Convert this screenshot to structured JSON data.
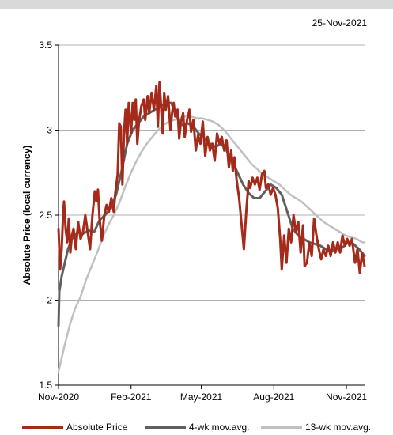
{
  "date_stamp": "25-Nov-2021",
  "colors": {
    "absolute_price": "#a52a1a",
    "ma4": "#606060",
    "ma13": "#c0c0c0",
    "top_band": "#d9d9d9",
    "grid": "#b0b0b0"
  },
  "chart_data": {
    "type": "line",
    "title": "",
    "xlabel": "",
    "ylabel": "Absolute Price (local currency)",
    "ylim": [
      1.5,
      3.5
    ],
    "yticks": [
      1.5,
      2,
      2.5,
      3,
      3.5
    ],
    "ytick_labels": [
      "1.5",
      "2",
      "2.5",
      "3",
      "3.5"
    ],
    "xlim": [
      "2020-11-01",
      "2021-11-25"
    ],
    "xticks": [
      "2020-11-01",
      "2021-02-01",
      "2021-05-01",
      "2021-08-01",
      "2021-11-01"
    ],
    "xtick_labels": [
      "Nov-2020",
      "Feb-2021",
      "May-2021",
      "Aug-2021",
      "Nov-2021"
    ],
    "grid": "horizontal",
    "legend_position": "bottom",
    "series": [
      {
        "name": "Absolute Price",
        "color": "#a52a1a",
        "points": [
          [
            "2020-11-01",
            2.42
          ],
          [
            "2020-11-03",
            2.18
          ],
          [
            "2020-11-05",
            2.3
          ],
          [
            "2020-11-07",
            2.52
          ],
          [
            "2020-11-08",
            2.58
          ],
          [
            "2020-11-10",
            2.42
          ],
          [
            "2020-11-12",
            2.34
          ],
          [
            "2020-11-14",
            2.48
          ],
          [
            "2020-11-16",
            2.28
          ],
          [
            "2020-11-18",
            2.38
          ],
          [
            "2020-11-20",
            2.42
          ],
          [
            "2020-11-23",
            2.3
          ],
          [
            "2020-11-26",
            2.46
          ],
          [
            "2020-11-29",
            2.36
          ],
          [
            "2020-12-02",
            2.4
          ],
          [
            "2020-12-05",
            2.5
          ],
          [
            "2020-12-08",
            2.4
          ],
          [
            "2020-12-11",
            2.3
          ],
          [
            "2020-12-14",
            2.5
          ],
          [
            "2020-12-17",
            2.64
          ],
          [
            "2020-12-19",
            2.58
          ],
          [
            "2020-12-21",
            2.65
          ],
          [
            "2020-12-23",
            2.48
          ],
          [
            "2020-12-26",
            2.35
          ],
          [
            "2020-12-29",
            2.5
          ],
          [
            "2021-01-01",
            2.56
          ],
          [
            "2021-01-04",
            2.52
          ],
          [
            "2021-01-07",
            2.6
          ],
          [
            "2021-01-10",
            2.52
          ],
          [
            "2021-01-12",
            2.63
          ],
          [
            "2021-01-15",
            2.74
          ],
          [
            "2021-01-17",
            3.04
          ],
          [
            "2021-01-19",
            3.02
          ],
          [
            "2021-01-21",
            2.68
          ],
          [
            "2021-01-23",
            2.98
          ],
          [
            "2021-01-25",
            3.12
          ],
          [
            "2021-01-27",
            2.92
          ],
          [
            "2021-01-29",
            3.16
          ],
          [
            "2021-02-01",
            2.98
          ],
          [
            "2021-02-03",
            3.16
          ],
          [
            "2021-02-05",
            3.06
          ],
          [
            "2021-02-07",
            3.18
          ],
          [
            "2021-02-09",
            2.92
          ],
          [
            "2021-02-11",
            3.05
          ],
          [
            "2021-02-14",
            3.14
          ],
          [
            "2021-02-17",
            3.18
          ],
          [
            "2021-02-19",
            3.06
          ],
          [
            "2021-02-22",
            3.2
          ],
          [
            "2021-02-24",
            3.1
          ],
          [
            "2021-02-27",
            3.22
          ],
          [
            "2021-03-02",
            3.12
          ],
          [
            "2021-03-05",
            3.26
          ],
          [
            "2021-03-07",
            3.02
          ],
          [
            "2021-03-09",
            3.28
          ],
          [
            "2021-03-11",
            3.14
          ],
          [
            "2021-03-13",
            2.98
          ],
          [
            "2021-03-15",
            3.22
          ],
          [
            "2021-03-17",
            3.12
          ],
          [
            "2021-03-20",
            3.2
          ],
          [
            "2021-03-23",
            3.0
          ],
          [
            "2021-03-25",
            3.1
          ],
          [
            "2021-03-27",
            3.16
          ],
          [
            "2021-03-29",
            3.08
          ],
          [
            "2021-04-01",
            3.12
          ],
          [
            "2021-04-03",
            2.95
          ],
          [
            "2021-04-05",
            3.04
          ],
          [
            "2021-04-08",
            3.1
          ],
          [
            "2021-04-10",
            2.96
          ],
          [
            "2021-04-13",
            3.06
          ],
          [
            "2021-04-16",
            3.12
          ],
          [
            "2021-04-18",
            2.99
          ],
          [
            "2021-04-21",
            3.06
          ],
          [
            "2021-04-24",
            2.88
          ],
          [
            "2021-04-27",
            2.97
          ],
          [
            "2021-04-30",
            2.92
          ],
          [
            "2021-05-03",
            3.05
          ],
          [
            "2021-05-06",
            2.85
          ],
          [
            "2021-05-09",
            2.96
          ],
          [
            "2021-05-12",
            2.88
          ],
          [
            "2021-05-15",
            2.92
          ],
          [
            "2021-05-18",
            2.82
          ],
          [
            "2021-05-21",
            2.98
          ],
          [
            "2021-05-24",
            2.92
          ],
          [
            "2021-05-27",
            2.96
          ],
          [
            "2021-05-30",
            2.88
          ],
          [
            "2021-06-02",
            2.94
          ],
          [
            "2021-06-05",
            2.78
          ],
          [
            "2021-06-08",
            2.88
          ],
          [
            "2021-06-10",
            2.76
          ],
          [
            "2021-06-12",
            2.84
          ],
          [
            "2021-06-15",
            2.7
          ],
          [
            "2021-06-18",
            2.6
          ],
          [
            "2021-06-21",
            2.45
          ],
          [
            "2021-06-24",
            2.3
          ],
          [
            "2021-06-27",
            2.52
          ],
          [
            "2021-06-30",
            2.7
          ],
          [
            "2021-07-02",
            2.66
          ],
          [
            "2021-07-05",
            2.72
          ],
          [
            "2021-07-08",
            2.68
          ],
          [
            "2021-07-11",
            2.72
          ],
          [
            "2021-07-14",
            2.65
          ],
          [
            "2021-07-17",
            2.74
          ],
          [
            "2021-07-20",
            2.76
          ],
          [
            "2021-07-22",
            2.66
          ],
          [
            "2021-07-25",
            2.68
          ],
          [
            "2021-07-28",
            2.62
          ],
          [
            "2021-07-31",
            2.66
          ],
          [
            "2021-08-03",
            2.62
          ],
          [
            "2021-08-06",
            2.54
          ],
          [
            "2021-08-09",
            2.36
          ],
          [
            "2021-08-11",
            2.18
          ],
          [
            "2021-08-14",
            2.38
          ],
          [
            "2021-08-17",
            2.22
          ],
          [
            "2021-08-20",
            2.42
          ],
          [
            "2021-08-23",
            2.34
          ],
          [
            "2021-08-26",
            2.5
          ],
          [
            "2021-08-29",
            2.4
          ],
          [
            "2021-09-01",
            2.46
          ],
          [
            "2021-09-04",
            2.28
          ],
          [
            "2021-09-07",
            2.44
          ],
          [
            "2021-09-09",
            2.2
          ],
          [
            "2021-09-12",
            2.22
          ],
          [
            "2021-09-15",
            2.34
          ],
          [
            "2021-09-18",
            2.26
          ],
          [
            "2021-09-21",
            2.48
          ],
          [
            "2021-09-24",
            2.38
          ],
          [
            "2021-09-27",
            2.3
          ],
          [
            "2021-09-30",
            2.24
          ],
          [
            "2021-10-03",
            2.3
          ],
          [
            "2021-10-06",
            2.26
          ],
          [
            "2021-10-09",
            2.32
          ],
          [
            "2021-10-12",
            2.26
          ],
          [
            "2021-10-15",
            2.34
          ],
          [
            "2021-10-18",
            2.28
          ],
          [
            "2021-10-21",
            2.34
          ],
          [
            "2021-10-24",
            2.28
          ],
          [
            "2021-10-27",
            2.38
          ],
          [
            "2021-10-30",
            2.32
          ],
          [
            "2021-11-02",
            2.36
          ],
          [
            "2021-11-05",
            2.32
          ],
          [
            "2021-11-08",
            2.36
          ],
          [
            "2021-11-12",
            2.22
          ],
          [
            "2021-11-15",
            2.3
          ],
          [
            "2021-11-18",
            2.16
          ],
          [
            "2021-11-21",
            2.28
          ],
          [
            "2021-11-24",
            2.2
          ]
        ]
      },
      {
        "name": "4-wk mov.avg.",
        "color": "#606060",
        "points": [
          [
            "2020-11-01",
            1.85
          ],
          [
            "2020-11-02",
            2.05
          ],
          [
            "2020-11-05",
            2.14
          ],
          [
            "2020-11-09",
            2.22
          ],
          [
            "2020-11-13",
            2.3
          ],
          [
            "2020-11-18",
            2.36
          ],
          [
            "2020-11-25",
            2.4
          ],
          [
            "2020-12-02",
            2.39
          ],
          [
            "2020-12-09",
            2.41
          ],
          [
            "2020-12-16",
            2.4
          ],
          [
            "2020-12-23",
            2.47
          ],
          [
            "2020-12-30",
            2.5
          ],
          [
            "2021-01-06",
            2.54
          ],
          [
            "2021-01-13",
            2.62
          ],
          [
            "2021-01-20",
            2.76
          ],
          [
            "2021-01-27",
            2.92
          ],
          [
            "2021-02-03",
            3.0
          ],
          [
            "2021-02-10",
            3.04
          ],
          [
            "2021-02-17",
            3.08
          ],
          [
            "2021-02-24",
            3.1
          ],
          [
            "2021-03-03",
            3.12
          ],
          [
            "2021-03-10",
            3.14
          ],
          [
            "2021-03-17",
            3.16
          ],
          [
            "2021-03-24",
            3.16
          ],
          [
            "2021-03-31",
            3.08
          ],
          [
            "2021-04-07",
            3.03
          ],
          [
            "2021-04-14",
            3.04
          ],
          [
            "2021-04-21",
            3.02
          ],
          [
            "2021-04-28",
            2.98
          ],
          [
            "2021-05-05",
            2.95
          ],
          [
            "2021-05-12",
            2.92
          ],
          [
            "2021-05-19",
            2.9
          ],
          [
            "2021-05-26",
            2.92
          ],
          [
            "2021-06-02",
            2.88
          ],
          [
            "2021-06-09",
            2.82
          ],
          [
            "2021-06-16",
            2.75
          ],
          [
            "2021-06-23",
            2.68
          ],
          [
            "2021-06-30",
            2.63
          ],
          [
            "2021-07-07",
            2.6
          ],
          [
            "2021-07-14",
            2.6
          ],
          [
            "2021-07-21",
            2.64
          ],
          [
            "2021-07-28",
            2.68
          ],
          [
            "2021-08-04",
            2.66
          ],
          [
            "2021-08-11",
            2.62
          ],
          [
            "2021-08-18",
            2.52
          ],
          [
            "2021-08-25",
            2.42
          ],
          [
            "2021-09-01",
            2.38
          ],
          [
            "2021-09-08",
            2.36
          ],
          [
            "2021-09-15",
            2.34
          ],
          [
            "2021-09-22",
            2.33
          ],
          [
            "2021-09-29",
            2.32
          ],
          [
            "2021-10-06",
            2.3
          ],
          [
            "2021-10-13",
            2.29
          ],
          [
            "2021-10-20",
            2.3
          ],
          [
            "2021-10-27",
            2.31
          ],
          [
            "2021-11-03",
            2.34
          ],
          [
            "2021-11-10",
            2.33
          ],
          [
            "2021-11-17",
            2.3
          ],
          [
            "2021-11-24",
            2.26
          ]
        ]
      },
      {
        "name": "13-wk mov.avg.",
        "color": "#c0c0c0",
        "points": [
          [
            "2020-11-01",
            1.58
          ],
          [
            "2020-11-03",
            1.62
          ],
          [
            "2020-11-08",
            1.72
          ],
          [
            "2020-11-15",
            1.85
          ],
          [
            "2020-11-22",
            1.95
          ],
          [
            "2020-11-29",
            2.02
          ],
          [
            "2020-12-06",
            2.12
          ],
          [
            "2020-12-13",
            2.2
          ],
          [
            "2020-12-20",
            2.28
          ],
          [
            "2020-12-27",
            2.37
          ],
          [
            "2021-01-03",
            2.44
          ],
          [
            "2021-01-10",
            2.5
          ],
          [
            "2021-01-17",
            2.57
          ],
          [
            "2021-01-24",
            2.66
          ],
          [
            "2021-01-31",
            2.74
          ],
          [
            "2021-02-07",
            2.81
          ],
          [
            "2021-02-14",
            2.87
          ],
          [
            "2021-02-21",
            2.92
          ],
          [
            "2021-02-28",
            2.96
          ],
          [
            "2021-03-07",
            3.0
          ],
          [
            "2021-03-14",
            3.03
          ],
          [
            "2021-03-21",
            3.05
          ],
          [
            "2021-03-28",
            3.06
          ],
          [
            "2021-04-04",
            3.07
          ],
          [
            "2021-04-11",
            3.08
          ],
          [
            "2021-04-18",
            3.08
          ],
          [
            "2021-04-25",
            3.07
          ],
          [
            "2021-05-02",
            3.07
          ],
          [
            "2021-05-09",
            3.06
          ],
          [
            "2021-05-16",
            3.05
          ],
          [
            "2021-05-23",
            3.03
          ],
          [
            "2021-05-30",
            3.0
          ],
          [
            "2021-06-06",
            2.96
          ],
          [
            "2021-06-13",
            2.92
          ],
          [
            "2021-06-20",
            2.88
          ],
          [
            "2021-06-27",
            2.84
          ],
          [
            "2021-07-04",
            2.8
          ],
          [
            "2021-07-11",
            2.77
          ],
          [
            "2021-07-18",
            2.74
          ],
          [
            "2021-07-25",
            2.72
          ],
          [
            "2021-08-01",
            2.7
          ],
          [
            "2021-08-08",
            2.68
          ],
          [
            "2021-08-15",
            2.65
          ],
          [
            "2021-08-22",
            2.62
          ],
          [
            "2021-08-29",
            2.6
          ],
          [
            "2021-09-05",
            2.58
          ],
          [
            "2021-09-12",
            2.55
          ],
          [
            "2021-09-19",
            2.52
          ],
          [
            "2021-09-26",
            2.49
          ],
          [
            "2021-10-03",
            2.46
          ],
          [
            "2021-10-10",
            2.44
          ],
          [
            "2021-10-17",
            2.42
          ],
          [
            "2021-10-24",
            2.4
          ],
          [
            "2021-10-31",
            2.38
          ],
          [
            "2021-11-07",
            2.37
          ],
          [
            "2021-11-14",
            2.36
          ],
          [
            "2021-11-21",
            2.34
          ],
          [
            "2021-11-24",
            2.34
          ]
        ]
      }
    ]
  }
}
